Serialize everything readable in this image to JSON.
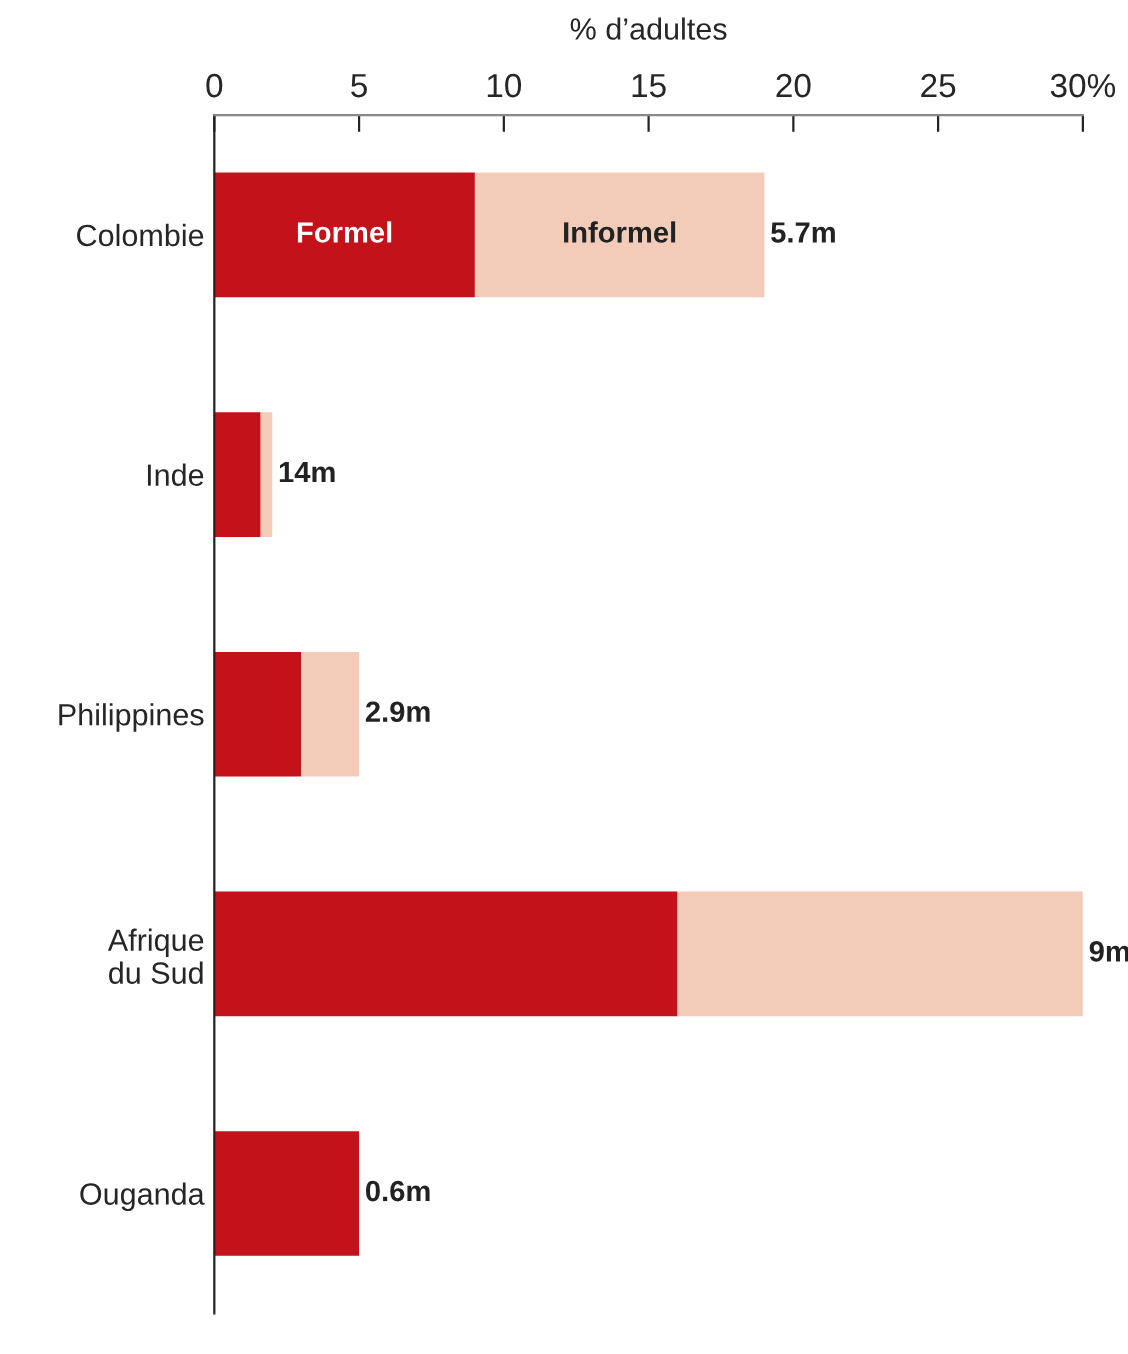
{
  "chart_data": {
    "type": "bar",
    "orientation": "horizontal",
    "stacked": true,
    "xlabel": "% d’adultes",
    "categories": [
      "Colombie",
      "Inde",
      "Philippines",
      "Afrique\ndu Sud",
      "Ouganda"
    ],
    "series": [
      {
        "name": "Formel",
        "color": "#c4121a",
        "values": [
          9.0,
          1.6,
          3.0,
          16.0,
          5.0
        ]
      },
      {
        "name": "Informel",
        "color": "#f2cbb9",
        "values": [
          10.0,
          0.4,
          2.0,
          14.0,
          null
        ]
      }
    ],
    "annotations": [
      {
        "text": "5.7m",
        "x": 19.0,
        "y": "Colombie"
      },
      {
        "text": "14m",
        "x": 2.0,
        "y": "Inde"
      },
      {
        "text": "2.9m",
        "x": 5.0,
        "y": "Philippines"
      },
      {
        "text": "9m",
        "x": 30.0,
        "y": "Afrique\ndu Sud"
      },
      {
        "text": "0.6m",
        "x": 5.0,
        "y": "Ouganda"
      }
    ],
    "xlim": [
      0,
      30
    ],
    "xticks": [
      0,
      5,
      10,
      15,
      20,
      25,
      {
        "value": 30,
        "label": "30%"
      }
    ],
    "grid": false,
    "legend": false
  }
}
